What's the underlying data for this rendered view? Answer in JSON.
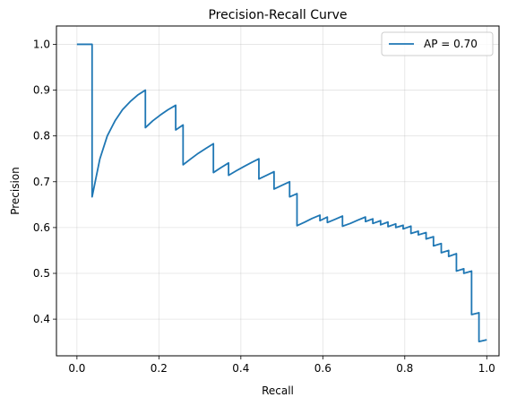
{
  "chart_data": {
    "type": "line",
    "title": "Precision-Recall Curve",
    "xlabel": "Recall",
    "ylabel": "Precision",
    "xlim": [
      -0.05,
      1.03
    ],
    "ylim": [
      0.32,
      1.04
    ],
    "xticks": [
      0.0,
      0.2,
      0.4,
      0.6,
      0.8,
      1.0
    ],
    "xtick_labels": [
      "0.0",
      "0.2",
      "0.4",
      "0.6",
      "0.8",
      "1.0"
    ],
    "yticks": [
      0.4,
      0.5,
      0.6,
      0.7,
      0.8,
      0.9,
      1.0
    ],
    "ytick_labels": [
      "0.4",
      "0.5",
      "0.6",
      "0.7",
      "0.8",
      "0.9",
      "1.0"
    ],
    "grid": true,
    "legend_position": "top-right",
    "series_color": "#1f77b4",
    "series": [
      {
        "name": "AP = 0.70",
        "points": [
          [
            0.0,
            1.0
          ],
          [
            0.037,
            1.0
          ],
          [
            0.037,
            0.667
          ],
          [
            0.056,
            0.75
          ],
          [
            0.074,
            0.8
          ],
          [
            0.093,
            0.833
          ],
          [
            0.111,
            0.857
          ],
          [
            0.13,
            0.875
          ],
          [
            0.148,
            0.889
          ],
          [
            0.167,
            0.9
          ],
          [
            0.167,
            0.818
          ],
          [
            0.185,
            0.833
          ],
          [
            0.204,
            0.846
          ],
          [
            0.222,
            0.857
          ],
          [
            0.241,
            0.867
          ],
          [
            0.241,
            0.813
          ],
          [
            0.259,
            0.824
          ],
          [
            0.259,
            0.737
          ],
          [
            0.278,
            0.75
          ],
          [
            0.296,
            0.762
          ],
          [
            0.315,
            0.773
          ],
          [
            0.333,
            0.783
          ],
          [
            0.333,
            0.72
          ],
          [
            0.352,
            0.731
          ],
          [
            0.37,
            0.741
          ],
          [
            0.37,
            0.714
          ],
          [
            0.389,
            0.724
          ],
          [
            0.407,
            0.733
          ],
          [
            0.426,
            0.742
          ],
          [
            0.444,
            0.75
          ],
          [
            0.444,
            0.706
          ],
          [
            0.463,
            0.714
          ],
          [
            0.481,
            0.722
          ],
          [
            0.481,
            0.684
          ],
          [
            0.5,
            0.692
          ],
          [
            0.519,
            0.7
          ],
          [
            0.519,
            0.667
          ],
          [
            0.537,
            0.674
          ],
          [
            0.537,
            0.604
          ],
          [
            0.556,
            0.612
          ],
          [
            0.574,
            0.62
          ],
          [
            0.593,
            0.627
          ],
          [
            0.593,
            0.615
          ],
          [
            0.611,
            0.623
          ],
          [
            0.611,
            0.611
          ],
          [
            0.63,
            0.618
          ],
          [
            0.648,
            0.625
          ],
          [
            0.648,
            0.603
          ],
          [
            0.667,
            0.609
          ],
          [
            0.685,
            0.616
          ],
          [
            0.704,
            0.623
          ],
          [
            0.704,
            0.613
          ],
          [
            0.722,
            0.619
          ],
          [
            0.722,
            0.609
          ],
          [
            0.741,
            0.615
          ],
          [
            0.741,
            0.606
          ],
          [
            0.759,
            0.612
          ],
          [
            0.759,
            0.602
          ],
          [
            0.778,
            0.608
          ],
          [
            0.778,
            0.6
          ],
          [
            0.796,
            0.605
          ],
          [
            0.796,
            0.597
          ],
          [
            0.815,
            0.603
          ],
          [
            0.815,
            0.587
          ],
          [
            0.833,
            0.592
          ],
          [
            0.833,
            0.584
          ],
          [
            0.852,
            0.589
          ],
          [
            0.852,
            0.575
          ],
          [
            0.87,
            0.58
          ],
          [
            0.87,
            0.56
          ],
          [
            0.889,
            0.565
          ],
          [
            0.889,
            0.545
          ],
          [
            0.907,
            0.55
          ],
          [
            0.907,
            0.537
          ],
          [
            0.926,
            0.543
          ],
          [
            0.926,
            0.505
          ],
          [
            0.944,
            0.51
          ],
          [
            0.944,
            0.5
          ],
          [
            0.963,
            0.505
          ],
          [
            0.963,
            0.41
          ],
          [
            0.981,
            0.414
          ],
          [
            0.981,
            0.351
          ],
          [
            1.0,
            0.355
          ]
        ]
      }
    ]
  }
}
